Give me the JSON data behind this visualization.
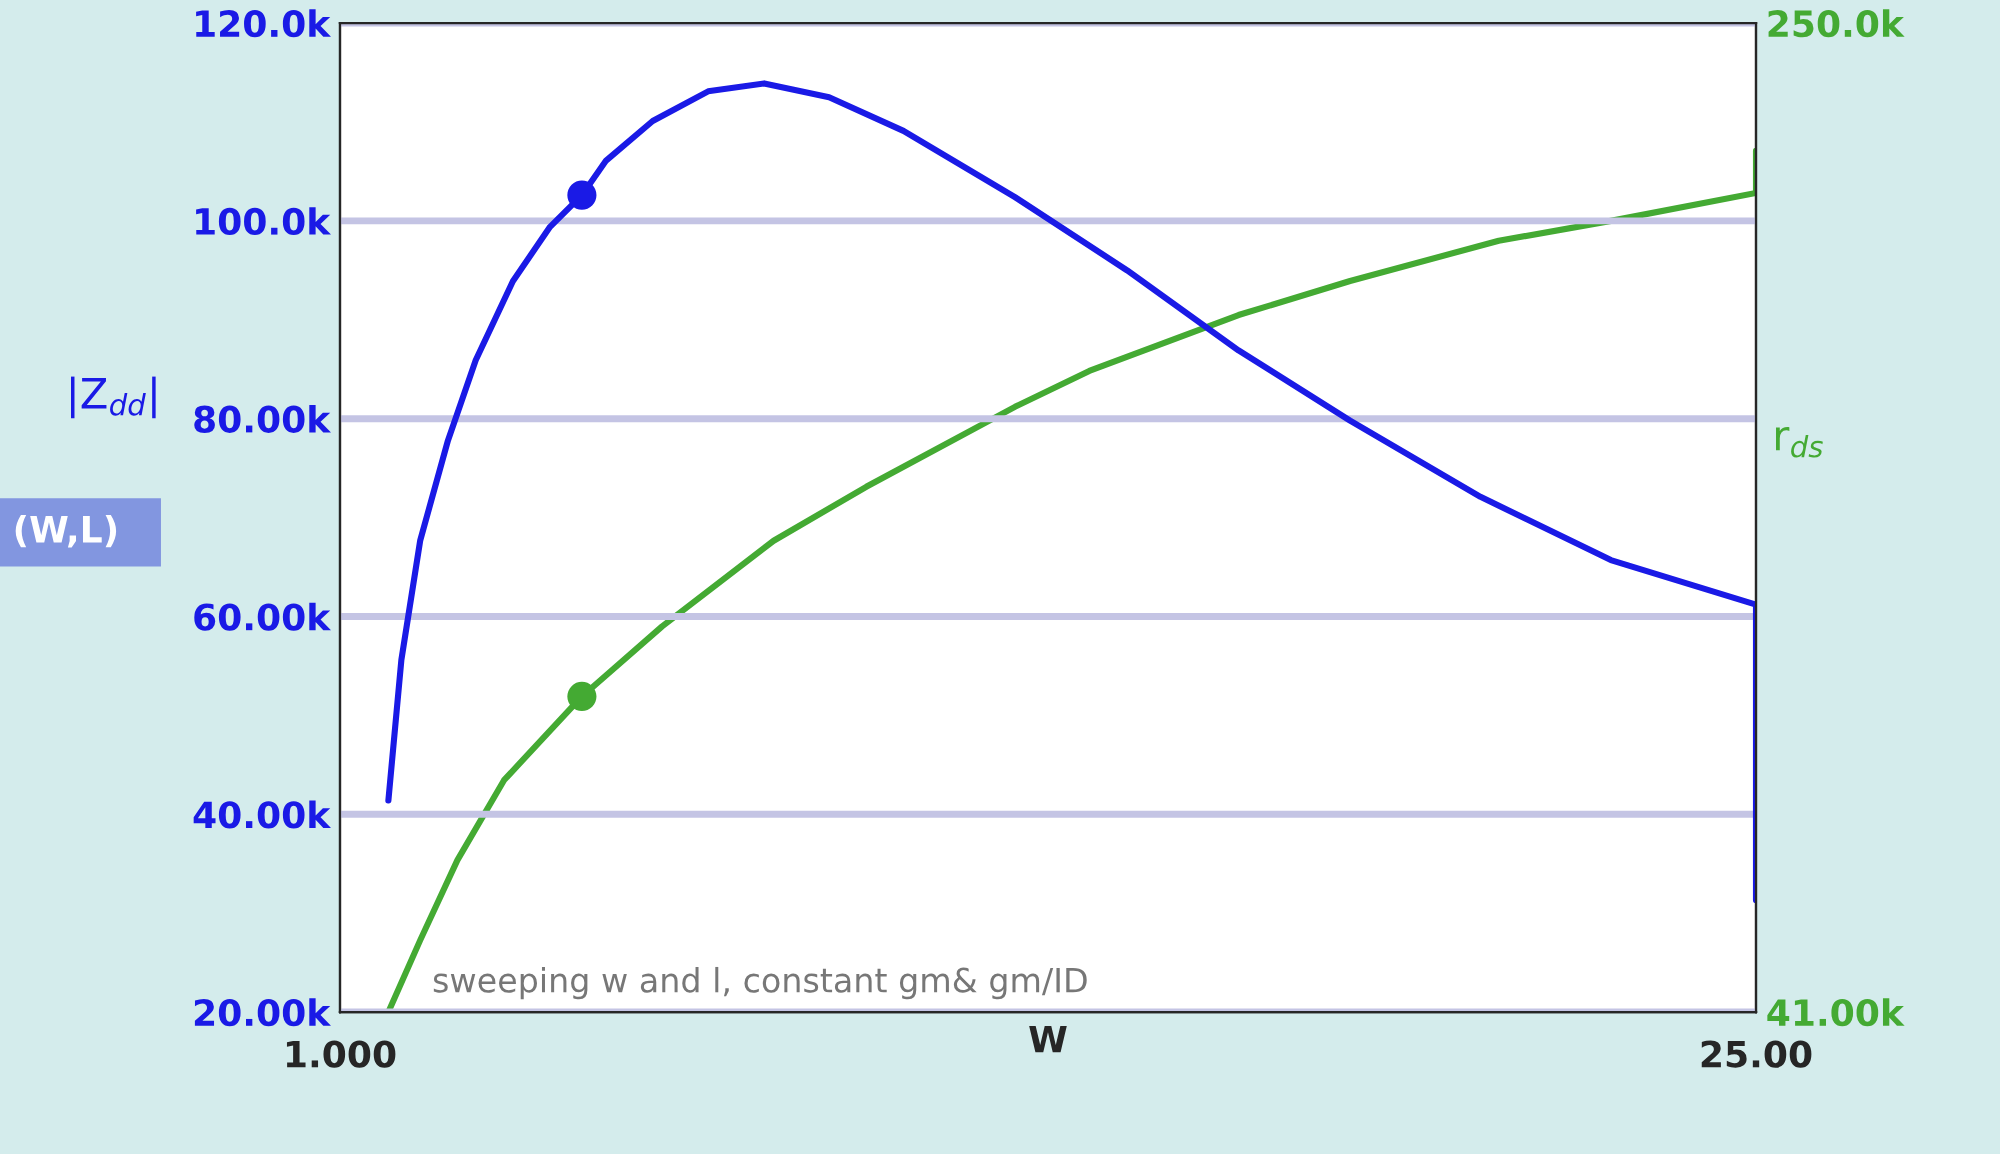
{
  "chart_data": {
    "type": "line",
    "xlabel": "W",
    "ylabel": "|Z$_{dd}$|",
    "y2label": "r$_{ds}$",
    "xlim": [
      1,
      25
    ],
    "xticks": [
      {
        "value": 1,
        "label": "1.000"
      },
      {
        "value": 25,
        "label": "25.00"
      }
    ],
    "ylim": [
      20,
      120
    ],
    "yticks": [
      {
        "value": 20,
        "label": "20.00k"
      },
      {
        "value": 40,
        "label": "40.00k"
      },
      {
        "value": 60,
        "label": "60.00k"
      },
      {
        "value": 80,
        "label": "80.00k"
      },
      {
        "value": 100,
        "label": "100.0k"
      },
      {
        "value": 120,
        "label": "120.0k"
      }
    ],
    "y2lim": [
      41,
      250
    ],
    "y2ticks": [
      {
        "value": 41,
        "label": "41.00k"
      },
      {
        "value": 250,
        "label": "250.0k"
      }
    ],
    "grid": "y",
    "legend": false,
    "annotations": [
      "sweeping w and l, constant gm& gm/ID",
      "(W,L)"
    ],
    "series": [
      {
        "color": "#1a1ae6",
        "x": [
          1.82,
          2.04,
          2.36,
          2.83,
          3.3,
          3.93,
          4.56,
          5.1,
          5.51,
          6.3,
          7.24,
          8.19,
          9.29,
          10.55,
          12.44,
          14.34,
          16.23,
          18.12,
          20.33,
          22.54,
          25,
          25
        ],
        "values": [
          41.4,
          55.6,
          67.7,
          77.8,
          85.9,
          93.9,
          99.4,
          102.6,
          106.1,
          110.1,
          113.1,
          113.9,
          112.5,
          109.1,
          102.4,
          95.0,
          86.9,
          79.8,
          72.1,
          65.7,
          61.2,
          31.3
        ]
      },
      {
        "axis": "y2",
        "color": "#44aa33",
        "x": [
          1.82,
          2.36,
          2.99,
          3.78,
          5.1,
          6.46,
          8.35,
          9.92,
          12.44,
          13.7,
          16.23,
          18.12,
          20.64,
          22.54,
          25,
          25
        ],
        "values": [
          41.0,
          56.2,
          73.1,
          90.0,
          107.7,
          122.5,
          140.6,
          152.0,
          168.9,
          176.5,
          188.3,
          195.5,
          204.0,
          208.2,
          214.1,
          223.0
        ]
      },
      {
        "type": "scatter",
        "color": "#1a1ae6",
        "marker": "circle",
        "x": [
          5.1
        ],
        "values": [
          102.6
        ]
      },
      {
        "type": "scatter",
        "axis": "y2",
        "color": "#44aa33",
        "marker": "circle",
        "x": [
          5.1
        ],
        "values": [
          107.7
        ]
      }
    ]
  }
}
